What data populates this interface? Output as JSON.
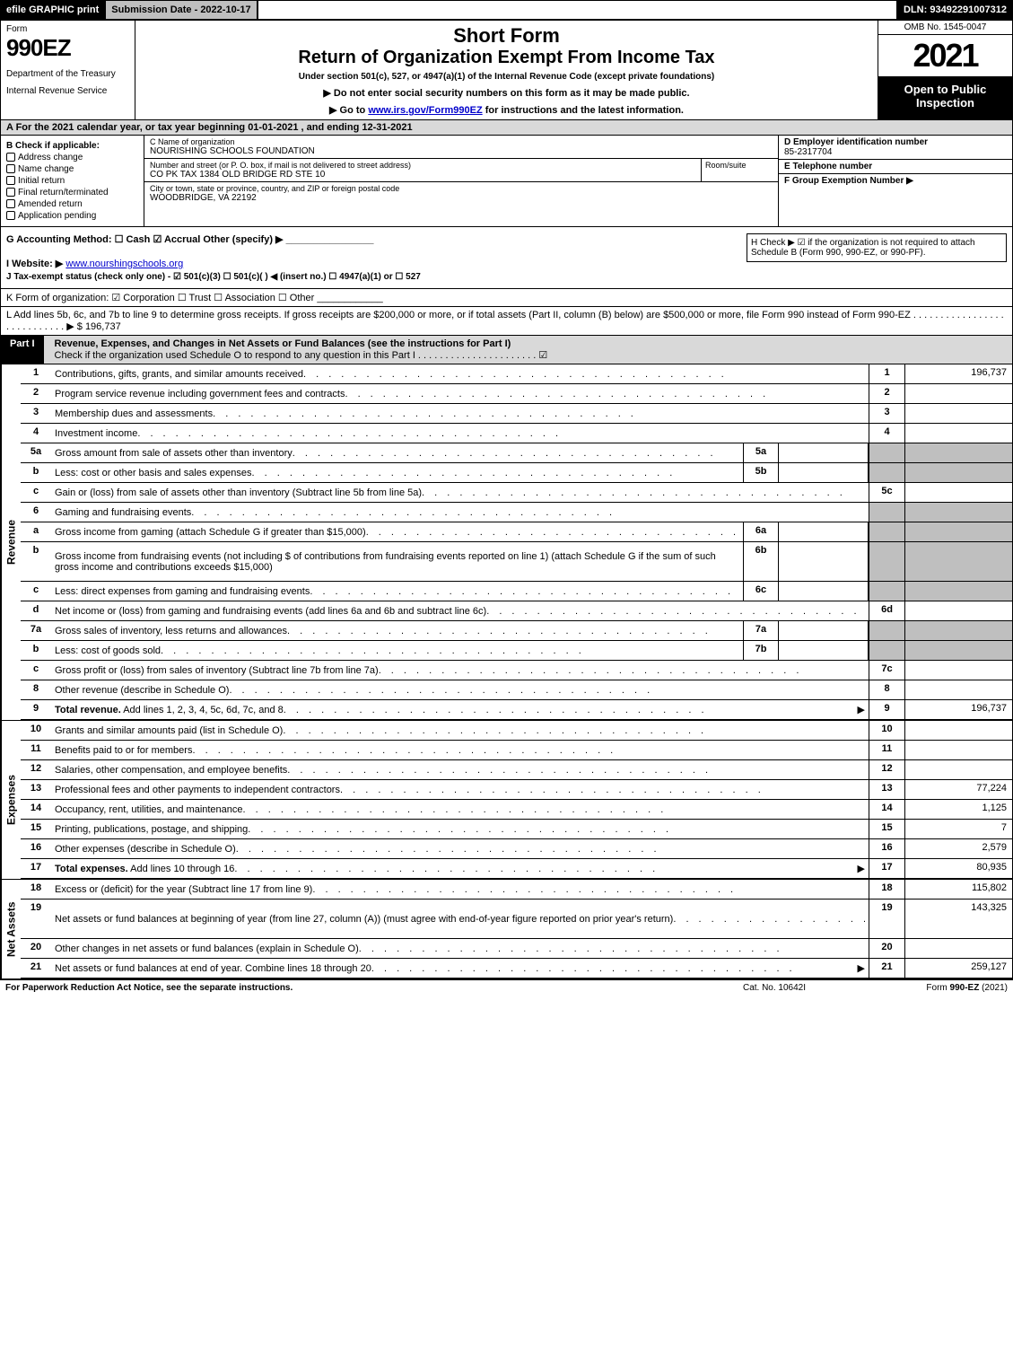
{
  "topbar": {
    "efile": "efile GRAPHIC print",
    "submission": "Submission Date - 2022-10-17",
    "dln": "DLN: 93492291007312"
  },
  "header": {
    "form_word": "Form",
    "form_number": "990EZ",
    "dept1": "Department of the Treasury",
    "dept2": "Internal Revenue Service",
    "short_form": "Short Form",
    "title": "Return of Organization Exempt From Income Tax",
    "under": "Under section 501(c), 527, or 4947(a)(1) of the Internal Revenue Code (except private foundations)",
    "note1_prefix": "▶ Do not enter social security numbers on this form as it may be made public.",
    "note2_prefix": "▶ Go to ",
    "note2_link": "www.irs.gov/Form990EZ",
    "note2_suffix": " for instructions and the latest information.",
    "omb": "OMB No. 1545-0047",
    "year": "2021",
    "open": "Open to Public Inspection"
  },
  "section_a": "A  For the 2021 calendar year, or tax year beginning 01-01-2021 , and ending 12-31-2021",
  "section_b": {
    "header": "B  Check if applicable:",
    "items": [
      "Address change",
      "Name change",
      "Initial return",
      "Final return/terminated",
      "Amended return",
      "Application pending"
    ]
  },
  "section_c": {
    "name_lbl": "C Name of organization",
    "name": "NOURISHING SCHOOLS FOUNDATION",
    "addr_lbl": "Number and street (or P. O. box, if mail is not delivered to street address)",
    "room_lbl": "Room/suite",
    "addr": "CO PK TAX 1384 OLD BRIDGE RD STE 10",
    "city_lbl": "City or town, state or province, country, and ZIP or foreign postal code",
    "city": "WOODBRIDGE, VA  22192"
  },
  "section_d": {
    "hdr": "D Employer identification number",
    "val": "85-2317704"
  },
  "section_e": {
    "hdr": "E Telephone number",
    "val": ""
  },
  "section_f": {
    "hdr": "F Group Exemption Number  ▶",
    "val": ""
  },
  "section_g": "G Accounting Method:  ☐ Cash  ☑ Accrual  Other (specify) ▶ ________________",
  "section_h": "H  Check ▶ ☑ if the organization is not required to attach Schedule B (Form 990, 990-EZ, or 990-PF).",
  "section_i_lbl": "I Website: ▶",
  "section_i_link": "www.nourshingschools.org",
  "section_j": "J Tax-exempt status (check only one) - ☑ 501(c)(3) ☐ 501(c)(  ) ◀ (insert no.) ☐ 4947(a)(1) or ☐ 527",
  "section_k": "K Form of organization:  ☑ Corporation  ☐ Trust  ☐ Association  ☐ Other  ____________",
  "section_l": {
    "text": "L Add lines 5b, 6c, and 7b to line 9 to determine gross receipts. If gross receipts are $200,000 or more, or if total assets (Part II, column (B) below) are $500,000 or more, file Form 990 instead of Form 990-EZ",
    "dots": " . . . . . . . . . . . . . . . . . . . . . . . . . . . . ▶ ",
    "amount": "$ 196,737"
  },
  "part1": {
    "tag": "Part I",
    "title": "Revenue, Expenses, and Changes in Net Assets or Fund Balances (see the instructions for Part I)",
    "sub": "Check if the organization used Schedule O to respond to any question in this Part I . . . . . . . . . . . . . . . . . . . . . . ☑"
  },
  "sidewords": {
    "revenue": "Revenue",
    "expenses": "Expenses",
    "netassets": "Net Assets"
  },
  "revenue_lines": [
    {
      "ln": "1",
      "desc": "Contributions, gifts, grants, and similar amounts received",
      "rnum": "1",
      "rval": "196,737"
    },
    {
      "ln": "2",
      "desc": "Program service revenue including government fees and contracts",
      "rnum": "2",
      "rval": ""
    },
    {
      "ln": "3",
      "desc": "Membership dues and assessments",
      "rnum": "3",
      "rval": ""
    },
    {
      "ln": "4",
      "desc": "Investment income",
      "rnum": "4",
      "rval": ""
    },
    {
      "ln": "5a",
      "desc": "Gross amount from sale of assets other than inventory",
      "subln": "5a",
      "shade": true
    },
    {
      "ln": "b",
      "desc": "Less: cost or other basis and sales expenses",
      "subln": "5b",
      "shade": true
    },
    {
      "ln": "c",
      "desc": "Gain or (loss) from sale of assets other than inventory (Subtract line 5b from line 5a)",
      "rnum": "5c",
      "rval": ""
    },
    {
      "ln": "6",
      "desc": "Gaming and fundraising events",
      "shade_all": true
    },
    {
      "ln": "a",
      "desc": "Gross income from gaming (attach Schedule G if greater than $15,000)",
      "subln": "6a",
      "shade": true
    },
    {
      "ln": "b",
      "desc": "Gross income from fundraising events (not including $                    of contributions from fundraising events reported on line 1) (attach Schedule G if the sum of such gross income and contributions exceeds $15,000)",
      "subln": "6b",
      "shade": true,
      "tall": true
    },
    {
      "ln": "c",
      "desc": "Less: direct expenses from gaming and fundraising events",
      "subln": "6c",
      "shade": true
    },
    {
      "ln": "d",
      "desc": "Net income or (loss) from gaming and fundraising events (add lines 6a and 6b and subtract line 6c)",
      "rnum": "6d",
      "rval": ""
    },
    {
      "ln": "7a",
      "desc": "Gross sales of inventory, less returns and allowances",
      "subln": "7a",
      "shade": true
    },
    {
      "ln": "b",
      "desc": "Less: cost of goods sold",
      "subln": "7b",
      "shade": true
    },
    {
      "ln": "c",
      "desc": "Gross profit or (loss) from sales of inventory (Subtract line 7b from line 7a)",
      "rnum": "7c",
      "rval": ""
    },
    {
      "ln": "8",
      "desc": "Other revenue (describe in Schedule O)",
      "rnum": "8",
      "rval": ""
    },
    {
      "ln": "9",
      "desc": "Total revenue. Add lines 1, 2, 3, 4, 5c, 6d, 7c, and 8",
      "rnum": "9",
      "rval": "196,737",
      "bold": true,
      "arrow": true
    }
  ],
  "expense_lines": [
    {
      "ln": "10",
      "desc": "Grants and similar amounts paid (list in Schedule O)",
      "rnum": "10",
      "rval": ""
    },
    {
      "ln": "11",
      "desc": "Benefits paid to or for members",
      "rnum": "11",
      "rval": ""
    },
    {
      "ln": "12",
      "desc": "Salaries, other compensation, and employee benefits",
      "rnum": "12",
      "rval": ""
    },
    {
      "ln": "13",
      "desc": "Professional fees and other payments to independent contractors",
      "rnum": "13",
      "rval": "77,224"
    },
    {
      "ln": "14",
      "desc": "Occupancy, rent, utilities, and maintenance",
      "rnum": "14",
      "rval": "1,125"
    },
    {
      "ln": "15",
      "desc": "Printing, publications, postage, and shipping",
      "rnum": "15",
      "rval": "7"
    },
    {
      "ln": "16",
      "desc": "Other expenses (describe in Schedule O)",
      "rnum": "16",
      "rval": "2,579"
    },
    {
      "ln": "17",
      "desc": "Total expenses. Add lines 10 through 16",
      "rnum": "17",
      "rval": "80,935",
      "bold": true,
      "arrow": true
    }
  ],
  "netasset_lines": [
    {
      "ln": "18",
      "desc": "Excess or (deficit) for the year (Subtract line 17 from line 9)",
      "rnum": "18",
      "rval": "115,802"
    },
    {
      "ln": "19",
      "desc": "Net assets or fund balances at beginning of year (from line 27, column (A)) (must agree with end-of-year figure reported on prior year's return)",
      "rnum": "19",
      "rval": "143,325",
      "tall": true
    },
    {
      "ln": "20",
      "desc": "Other changes in net assets or fund balances (explain in Schedule O)",
      "rnum": "20",
      "rval": ""
    },
    {
      "ln": "21",
      "desc": "Net assets or fund balances at end of year. Combine lines 18 through 20",
      "rnum": "21",
      "rval": "259,127",
      "arrow": true
    }
  ],
  "footer": {
    "left": "For Paperwork Reduction Act Notice, see the separate instructions.",
    "mid": "Cat. No. 10642I",
    "right": "Form 990-EZ (2021)"
  },
  "colors": {
    "black": "#000000",
    "gray_header": "#d9d9d9",
    "gray_shade": "#bfbfbf",
    "link": "#0000cc"
  }
}
